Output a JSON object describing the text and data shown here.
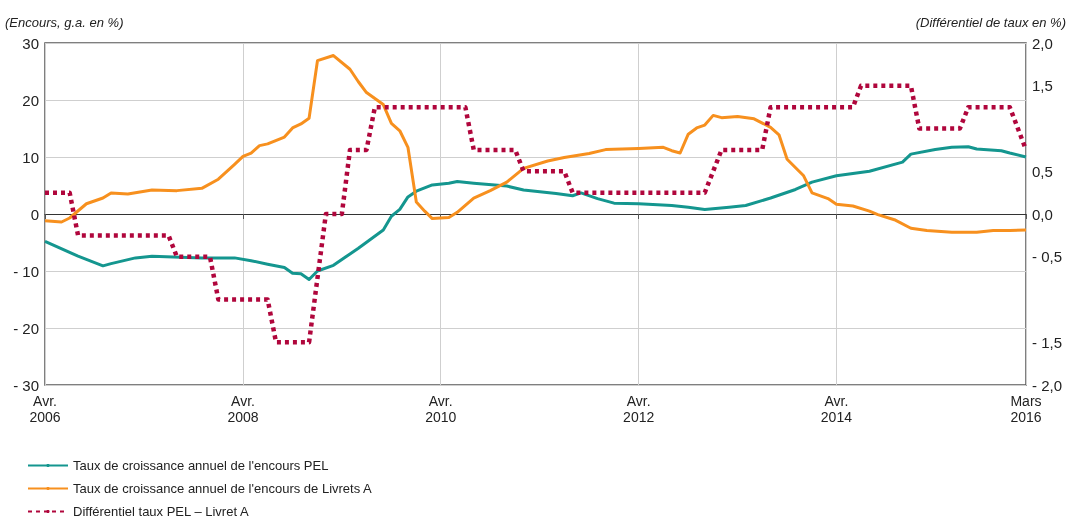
{
  "chart_data": {
    "type": "line",
    "ylabel": "(Encours, g.a. en %)",
    "y2label": "(Différentiel de taux en %)",
    "xlim": [
      "2006-04",
      "2016-03"
    ],
    "xticks": [
      {
        "value": "2006-04",
        "label": "Avr.\n2006"
      },
      {
        "value": "2008-04",
        "label": "Avr.\n2008"
      },
      {
        "value": "2010-04",
        "label": "Avr.\n2010"
      },
      {
        "value": "2012-04",
        "label": "Avr.\n2012"
      },
      {
        "value": "2014-04",
        "label": "Avr.\n2014"
      },
      {
        "value": "2016-03",
        "label": "Mars\n2016"
      }
    ],
    "ylim": [
      -30,
      30
    ],
    "yticks": [
      {
        "value": -30,
        "label": "- 30"
      },
      {
        "value": -20,
        "label": "- 20"
      },
      {
        "value": -10,
        "label": "- 10"
      },
      0,
      10,
      20,
      30
    ],
    "y2lim": [
      -2,
      2
    ],
    "y2ticks": [
      {
        "value": -2,
        "label": "- 2,0"
      },
      {
        "value": -1.5,
        "label": "- 1,5"
      },
      {
        "value": -0.5,
        "label": "- 0,5"
      },
      {
        "value": 0,
        "label": "0,0"
      },
      {
        "value": 0.5,
        "label": "0,5"
      },
      {
        "value": 1.5,
        "label": "1,5"
      },
      {
        "value": 2,
        "label": "2,0"
      }
    ],
    "grid": true,
    "legend": "bottom",
    "marker": "none",
    "series": [
      {
        "name": "Taux de croissance annuel de l'encours PEL",
        "color": "#14968f",
        "line_style": "solid",
        "x": [
          "2006-04",
          "2006-08",
          "2006-11",
          "2006-12",
          "2007-03",
          "2007-05",
          "2007-11",
          "2008-03",
          "2008-05",
          "2008-07",
          "2008-09",
          "2008-10",
          "2008-11",
          "2008-12",
          "2009-01",
          "2009-03",
          "2009-05",
          "2009-06",
          "2009-09",
          "2009-10",
          "2009-11",
          "2009-12",
          "2010-01",
          "2010-03",
          "2010-05",
          "2010-06",
          "2010-08",
          "2010-12",
          "2011-02",
          "2011-06",
          "2011-08",
          "2011-09",
          "2011-11",
          "2012-01",
          "2012-04",
          "2012-08",
          "2012-10",
          "2012-12",
          "2013-03",
          "2013-05",
          "2013-08",
          "2013-11",
          "2014-01",
          "2014-04",
          "2014-08",
          "2014-12",
          "2015-01",
          "2015-04",
          "2015-06",
          "2015-08",
          "2015-09",
          "2015-12",
          "2016-01",
          "2016-03"
        ],
        "values": [
          -4.8,
          -7.4,
          -9.1,
          -8.7,
          -7.7,
          -7.4,
          -7.7,
          -7.7,
          -8.2,
          -8.8,
          -9.4,
          -10.4,
          -10.5,
          -11.5,
          -10.0,
          -9.0,
          -7.0,
          -6.0,
          -2.8,
          -0.4,
          0.8,
          3.0,
          4.0,
          5.1,
          5.4,
          5.7,
          5.4,
          4.9,
          4.2,
          3.6,
          3.2,
          3.7,
          2.7,
          1.9,
          1.8,
          1.5,
          1.2,
          0.8,
          1.2,
          1.5,
          2.8,
          4.3,
          5.6,
          6.7,
          7.5,
          9.1,
          10.5,
          11.3,
          11.7,
          11.8,
          11.4,
          11.1,
          10.7,
          10.0
        ]
      },
      {
        "name": "Taux de croissance annuel de l'encours de Livrets A",
        "color": "#f7901e",
        "line_style": "solid",
        "x": [
          "2006-04",
          "2006-06",
          "2006-07",
          "2006-09",
          "2006-11",
          "2006-12",
          "2007-02",
          "2007-05",
          "2007-08",
          "2007-11",
          "2008-01",
          "2008-03",
          "2008-04",
          "2008-05",
          "2008-06",
          "2008-07",
          "2008-09",
          "2008-10",
          "2008-11",
          "2008-12",
          "2009-01",
          "2009-03",
          "2009-05",
          "2009-06",
          "2009-07",
          "2009-09",
          "2009-10",
          "2009-11",
          "2009-12",
          "2010-01",
          "2010-02",
          "2010-03",
          "2010-05",
          "2010-06",
          "2010-08",
          "2010-10",
          "2010-12",
          "2011-02",
          "2011-05",
          "2011-07",
          "2011-10",
          "2011-12",
          "2012-04",
          "2012-07",
          "2012-08",
          "2012-09",
          "2012-10",
          "2012-11",
          "2012-12",
          "2013-01",
          "2013-02",
          "2013-04",
          "2013-06",
          "2013-08",
          "2013-09",
          "2013-10",
          "2013-12",
          "2014-01",
          "2014-03",
          "2014-04",
          "2014-06",
          "2014-08",
          "2014-09",
          "2014-11",
          "2015-01",
          "2015-03",
          "2015-06",
          "2015-09",
          "2015-11",
          "2016-01",
          "2016-03"
        ],
        "values": [
          -1.2,
          -1.4,
          -0.7,
          1.8,
          2.8,
          3.7,
          3.5,
          4.2,
          4.1,
          4.5,
          6.1,
          8.7,
          10.1,
          10.7,
          12.0,
          12.3,
          13.5,
          15.1,
          15.8,
          16.8,
          26.9,
          27.8,
          25.4,
          23.2,
          21.3,
          19.2,
          15.9,
          14.6,
          11.7,
          2.1,
          0.5,
          -0.8,
          -0.6,
          0.3,
          2.8,
          4.1,
          5.6,
          8.0,
          9.3,
          9.9,
          10.6,
          11.3,
          11.5,
          11.7,
          11.1,
          10.7,
          14.0,
          15.1,
          15.6,
          17.3,
          16.9,
          17.1,
          16.7,
          15.2,
          13.9,
          9.6,
          6.7,
          3.7,
          2.7,
          1.7,
          1.4,
          0.5,
          -0.1,
          -1.0,
          -2.5,
          -2.9,
          -3.2,
          -3.2,
          -2.9,
          -2.9,
          -2.8
        ]
      },
      {
        "name": "Différentiel taux PEL – Livret A",
        "color": "#b0063c",
        "line_style": "dotted",
        "axis": "y2",
        "x": [
          "2006-04",
          "2006-07",
          "2006-08",
          "2007-07",
          "2007-08",
          "2007-12",
          "2008-01",
          "2008-07",
          "2008-08",
          "2008-12",
          "2009-02",
          "2009-04",
          "2009-05",
          "2009-07",
          "2009-08",
          "2010-07",
          "2010-08",
          "2011-01",
          "2011-02",
          "2011-07",
          "2011-08",
          "2012-12",
          "2013-02",
          "2013-07",
          "2013-08",
          "2014-06",
          "2014-07",
          "2015-01",
          "2015-02",
          "2015-07",
          "2015-08",
          "2016-01",
          "2016-03"
        ],
        "values": [
          0.25,
          0.25,
          -0.25,
          -0.25,
          -0.5,
          -0.5,
          -1.0,
          -1.0,
          -1.5,
          -1.5,
          0,
          0,
          0.75,
          0.75,
          1.25,
          1.25,
          0.75,
          0.75,
          0.5,
          0.5,
          0.25,
          0.25,
          0.75,
          0.75,
          1.25,
          1.25,
          1.5,
          1.5,
          1.0,
          1.0,
          1.25,
          1.25,
          0.75
        ]
      }
    ]
  }
}
